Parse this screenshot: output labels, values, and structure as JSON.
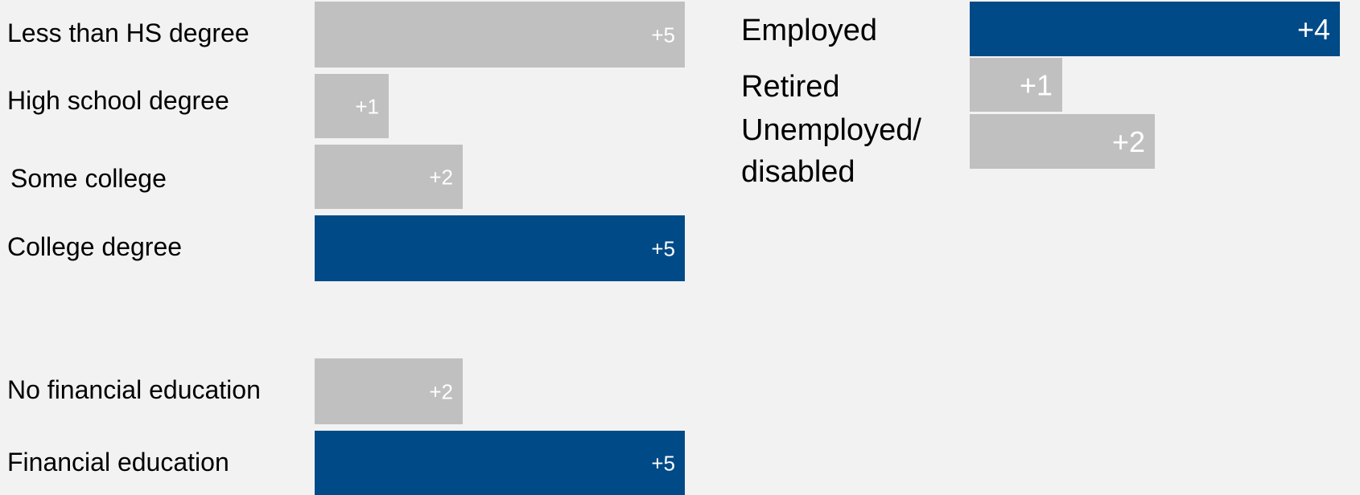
{
  "chart_data": [
    {
      "type": "bar",
      "orientation": "horizontal",
      "categories": [
        "Less than HS degree",
        "High school degree",
        "Some college",
        "College degree"
      ],
      "values": [
        5,
        1,
        2,
        5
      ],
      "labels": [
        "+5",
        "+1",
        "+2",
        "+5"
      ],
      "highlight": [
        false,
        false,
        false,
        true
      ],
      "xlim": [
        0,
        5
      ],
      "grid": false,
      "title": "",
      "xlabel": "",
      "ylabel": ""
    },
    {
      "type": "bar",
      "orientation": "horizontal",
      "categories": [
        "No financial education",
        "Financial education"
      ],
      "values": [
        2,
        5
      ],
      "labels": [
        "+2",
        "+5"
      ],
      "highlight": [
        false,
        true
      ],
      "xlim": [
        0,
        5
      ],
      "grid": false,
      "title": "",
      "xlabel": "",
      "ylabel": ""
    },
    {
      "type": "bar",
      "orientation": "horizontal",
      "categories": [
        "Employed",
        "Retired",
        "Unemployed/ disabled"
      ],
      "values": [
        4,
        1,
        2
      ],
      "labels": [
        "+4",
        "+1",
        "+2"
      ],
      "highlight": [
        true,
        false,
        false
      ],
      "xlim": [
        0,
        4
      ],
      "grid": false,
      "title": "",
      "xlabel": "",
      "ylabel": ""
    }
  ],
  "colors": {
    "highlight": "#004a87",
    "neutral": "#c0c0c0",
    "background": "#f2f2f2",
    "label": "#000000",
    "value_text": "#ffffff"
  }
}
